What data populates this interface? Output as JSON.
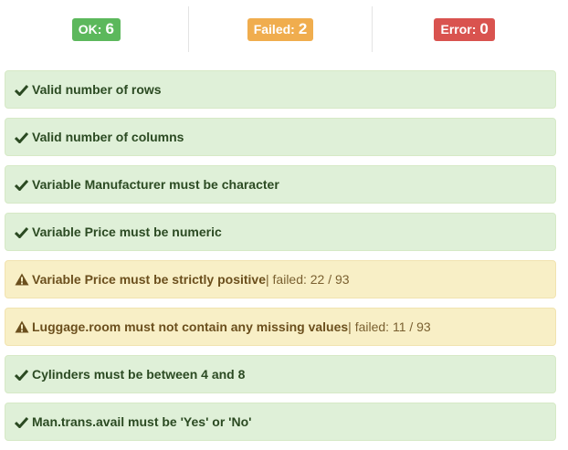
{
  "summary": {
    "ok": {
      "label": "OK:",
      "count": "6",
      "color": "#5cb85c"
    },
    "failed": {
      "label": "Failed:",
      "count": "2",
      "color": "#f0ad4e"
    },
    "error": {
      "label": "Error:",
      "count": "0",
      "color": "#d9534f"
    }
  },
  "checks": [
    {
      "status": "ok",
      "icon": "check-icon",
      "label": "Valid number of rows",
      "detail": ""
    },
    {
      "status": "ok",
      "icon": "check-icon",
      "label": "Valid number of columns",
      "detail": ""
    },
    {
      "status": "ok",
      "icon": "check-icon",
      "label": "Variable Manufacturer must be character",
      "detail": ""
    },
    {
      "status": "ok",
      "icon": "check-icon",
      "label": "Variable Price must be numeric",
      "detail": ""
    },
    {
      "status": "warn",
      "icon": "warning-icon",
      "label": "Variable Price must be strictly positive",
      "detail": "| failed: 22 / 93"
    },
    {
      "status": "warn",
      "icon": "warning-icon",
      "label": "Luggage.room must not contain any missing values",
      "detail": "| failed: 11 / 93"
    },
    {
      "status": "ok",
      "icon": "check-icon",
      "label": "Cylinders must be between 4 and 8",
      "detail": ""
    },
    {
      "status": "ok",
      "icon": "check-icon",
      "label": "Man.trans.avail must be 'Yes' or 'No'",
      "detail": ""
    }
  ]
}
